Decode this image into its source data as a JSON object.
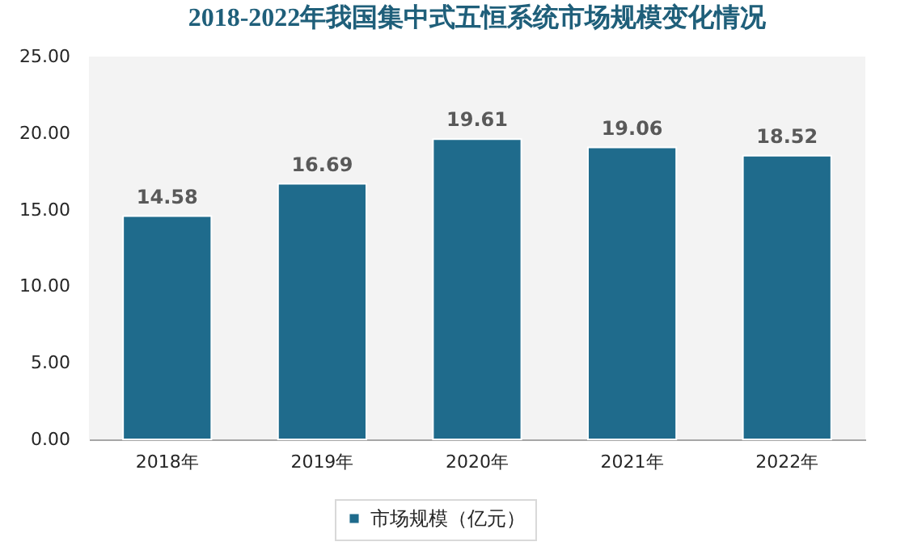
{
  "chart_data": {
    "type": "bar",
    "title": "2018-2022年我国集中式五恒系统市场规模变化情况",
    "categories": [
      "2018年",
      "2019年",
      "2020年",
      "2021年",
      "2022年"
    ],
    "series": [
      {
        "name": "市场规模（亿元）",
        "color": "#1f6b8c",
        "values": [
          14.58,
          16.69,
          19.61,
          19.06,
          18.52
        ]
      }
    ],
    "ylim": [
      0,
      25
    ],
    "yticks": [
      {
        "value": 0,
        "label": "0.00"
      },
      {
        "value": 5,
        "label": "5.00"
      },
      {
        "value": 10,
        "label": "10.00"
      },
      {
        "value": 15,
        "label": "15.00"
      },
      {
        "value": 20,
        "label": "20.00"
      },
      {
        "value": 25,
        "label": "25.00"
      }
    ],
    "data_labels": true,
    "legend": "bottom",
    "grid": false
  }
}
